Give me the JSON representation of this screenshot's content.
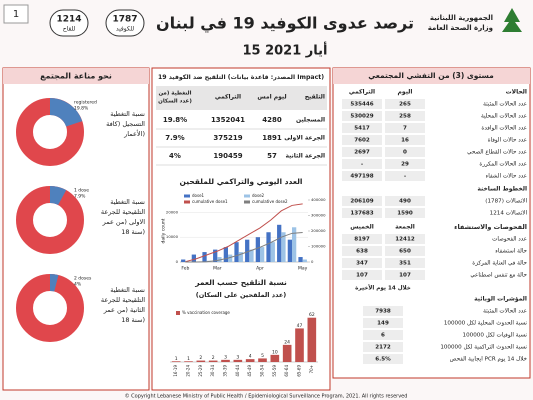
{
  "header": {
    "page": 1,
    "hotlines": [
      {
        "number": 1214,
        "label": "للقاح"
      },
      {
        "number": 1787,
        "label": "للكوفيد"
      }
    ],
    "title": "ترصد عدوى الكوفيد 19 في لبنان",
    "date": "15 أيار 2021",
    "ministry": [
      "الجمهورية اللبنانية",
      "وزارة الصحة العامة"
    ]
  },
  "left_panel": {
    "title": "نحو مناعة المجتمع"
  },
  "vaccination_table": {
    "title": "التلقيح ضد الكوفيد 19 (المصدر: قاعدة بيانات Impact)",
    "columns": [
      "التلقيح",
      "ليوم امس",
      "التراكمي",
      [
        "التغطية (من",
        "عدد السكان)"
      ]
    ],
    "rows": [
      [
        "المسجلين",
        4280,
        1352041,
        "19.8%"
      ],
      [
        "الجرعة الاولى",
        1891,
        375219,
        "7.9%"
      ],
      [
        "الجرعة الثانية",
        57,
        190459,
        "4%"
      ]
    ]
  },
  "surveillance": {
    "title": "مستوى (3) من التفشي المجتمعي",
    "columns": [
      "الحالات",
      "اليوم",
      "التراكمي"
    ],
    "rows": [
      [
        "عدد الحالات المثبتة",
        265,
        535446
      ],
      [
        "عدد الحالات المحلية",
        258,
        530029
      ],
      [
        "عدد الحالات الوافدة",
        7,
        5417
      ],
      [
        "عدد حالات الوفاة",
        16,
        7602
      ],
      [
        "عدد حالات القطاع الصحي",
        0,
        2697
      ],
      [
        "عدد الحالات المكررة",
        29,
        "-"
      ],
      [
        "عدد حالات الشفاء",
        "-",
        497198
      ]
    ],
    "hotlines_title": "الخطوط الساخنة",
    "hotlines": [
      [
        "الاتصالات (1787)",
        490,
        206109
      ],
      [
        "الاتصالات 1214",
        1590,
        137683
      ]
    ],
    "tests_columns": [
      "الفحوصات والاستشفاء",
      "الجمعة",
      "الخميس"
    ],
    "tests": [
      [
        "عدد الفحوصات",
        12412,
        8197
      ],
      [
        "حالة استشفاء",
        650,
        638
      ],
      [
        "حالة في العناية المركزة",
        351,
        347
      ],
      [
        "حالة مع تنفس اصطناعي",
        107,
        107
      ]
    ],
    "period": "خلال 14 يوم الأخيرة",
    "indicators_title": "المؤشرات الوبائية",
    "indicators": [
      [
        "عدد الحالات المثبتة",
        7938
      ],
      [
        "نسبة الحدوث المحلية لكل 100000",
        149
      ],
      [
        "نسبة الوفيات لكل 100000",
        6
      ],
      [
        "نسبة الحدوث التراكمية لكل 100000",
        2172
      ],
      [
        "ايجابية الفحص PCR خلال 14 يوم",
        "6.5%"
      ]
    ]
  },
  "chart_data": [
    {
      "type": "donut",
      "title": [
        "نسبة التغطية",
        "التسجيل (كافة",
        "الأعمار)"
      ],
      "categories": [
        "registered"
      ],
      "values": [
        19.8
      ],
      "value_labels": [
        "19.8%"
      ],
      "ylim": [
        0,
        100
      ],
      "color": "#4f81bd",
      "rest_color": "#e0474c"
    },
    {
      "type": "donut",
      "title": [
        "نسبة التغطية",
        "التلقيحية للجرعة",
        "الاولى (من عمر",
        "18 سنة)"
      ],
      "categories": [
        "1 dose"
      ],
      "values": [
        7.9
      ],
      "value_labels": [
        "7.9%"
      ],
      "ylim": [
        0,
        100
      ],
      "color": "#4f81bd",
      "rest_color": "#e0474c"
    },
    {
      "type": "donut",
      "title": [
        "نسبة التغطية",
        "التلقيحية للجرعة",
        "الثانية (من عمر",
        "18 سنة)"
      ],
      "categories": [
        "2 doses"
      ],
      "values": [
        4
      ],
      "value_labels": [
        "4%"
      ],
      "ylim": [
        0,
        100
      ],
      "color": "#4f81bd",
      "rest_color": "#e0474c"
    },
    {
      "type": "bar",
      "title": "العدد اليومي والتراكمي للملقحين",
      "y_label": "daily count",
      "categories": [
        "Feb",
        null,
        null,
        "Mar",
        null,
        null,
        null,
        "Apr",
        null,
        null,
        null,
        "May"
      ],
      "series": [
        {
          "name": "dose1",
          "color": "#4472c4",
          "values": [
            1000,
            3000,
            4000,
            5000,
            6000,
            8000,
            9000,
            10000,
            12000,
            15000,
            9000,
            2000
          ]
        },
        {
          "name": "dose2",
          "color": "#9dc3e6",
          "values": [
            0,
            0,
            500,
            2000,
            3000,
            4000,
            5000,
            6000,
            8000,
            12000,
            14000,
            1000
          ]
        },
        {
          "name": "cumulative dose1",
          "color": "#c0504d",
          "axis": "y2",
          "values": [
            2000,
            20000,
            45000,
            70000,
            100000,
            140000,
            180000,
            220000,
            270000,
            330000,
            365000,
            375219
          ]
        },
        {
          "name": "cumulative dose2",
          "color": "#7f7f7f",
          "axis": "y2",
          "values": [
            0,
            0,
            2000,
            10000,
            25000,
            45000,
            70000,
            95000,
            125000,
            160000,
            185000,
            190459
          ]
        }
      ],
      "ylim": [
        0,
        25000
      ],
      "yticks": [
        0,
        10000,
        20000
      ],
      "y2lim": [
        0,
        400000
      ],
      "y2ticks": [
        0,
        100000,
        200000,
        300000,
        400000
      ]
    },
    {
      "type": "bar",
      "title": "نسبة التلقيح حسب العمر",
      "subtitle": "(عدد الملقحين على السكان)",
      "categories": [
        "16-19",
        "20-24",
        "25-29",
        "30-34",
        "35-39",
        "40-44",
        "45-49",
        "50-54",
        "55-59",
        "60-64",
        "65-69",
        "70+"
      ],
      "series": [
        {
          "name": "% vaccination coverage",
          "color": "#c0504d",
          "values": [
            1,
            1,
            2,
            2,
            3,
            3,
            4,
            5,
            10,
            24,
            47,
            62
          ]
        }
      ],
      "ylim": [
        0,
        70
      ]
    }
  ],
  "footer": "© Copyright Lebanese Ministry of Public Health / Epidemiological Surveillance Program, 2021. All rights reserved"
}
